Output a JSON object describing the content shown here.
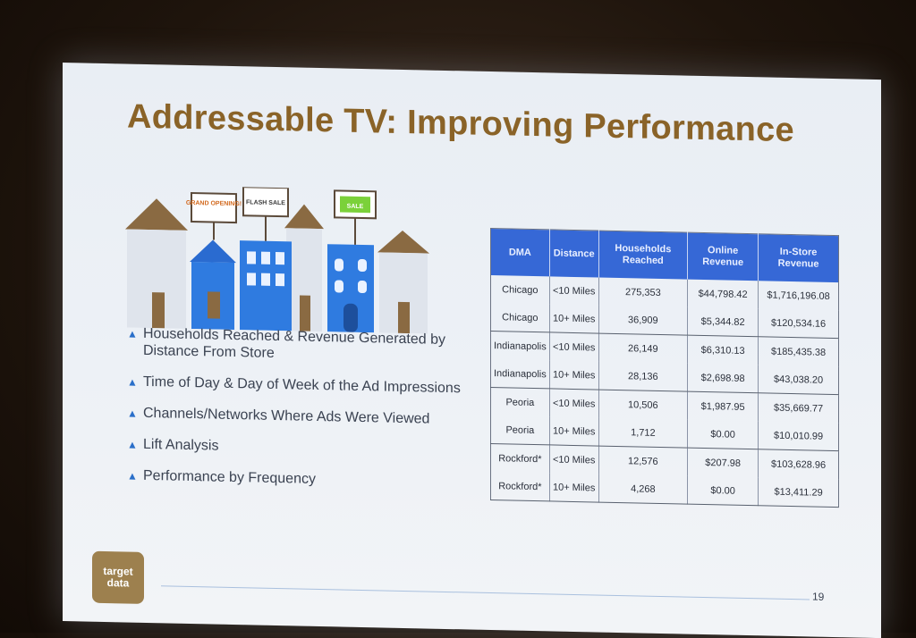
{
  "slide": {
    "title": "Addressable TV: Improving Performance",
    "page_number": "19",
    "logo_text": [
      "target",
      "data"
    ],
    "illustration_signs": [
      "GRAND OPENING!",
      "FLASH SALE",
      "SALE"
    ]
  },
  "bullets": [
    "Households Reached & Revenue Generated by Distance From Store",
    "Time of Day & Day of Week of the Ad Impressions",
    "Channels/Networks Where Ads Were Viewed",
    "Lift Analysis",
    "Performance by Frequency"
  ],
  "table": {
    "headers": [
      "DMA",
      "Distance",
      "Households Reached",
      "Online Revenue",
      "In-Store Revenue"
    ],
    "rows": [
      [
        "Chicago",
        "<10 Miles",
        "275,353",
        "$44,798.42",
        "$1,716,196.08"
      ],
      [
        "Chicago",
        "10+ Miles",
        "36,909",
        "$5,344.82",
        "$120,534.16"
      ],
      [
        "Indianapolis",
        "<10 Miles",
        "26,149",
        "$6,310.13",
        "$185,435.38"
      ],
      [
        "Indianapolis",
        "10+ Miles",
        "28,136",
        "$2,698.98",
        "$43,038.20"
      ],
      [
        "Peoria",
        "<10 Miles",
        "10,506",
        "$1,987.95",
        "$35,669.77"
      ],
      [
        "Peoria",
        "10+ Miles",
        "1,712",
        "$0.00",
        "$10,010.99"
      ],
      [
        "Rockford*",
        "<10 Miles",
        "12,576",
        "$207.98",
        "$103,628.96"
      ],
      [
        "Rockford*",
        "10+ Miles",
        "4,268",
        "$0.00",
        "$13,411.29"
      ]
    ]
  },
  "colors": {
    "title": "#8a6328",
    "table_header": "#3668d6",
    "bullet_marker": "#2a6fc9",
    "logo_bg": "#9d804e"
  }
}
